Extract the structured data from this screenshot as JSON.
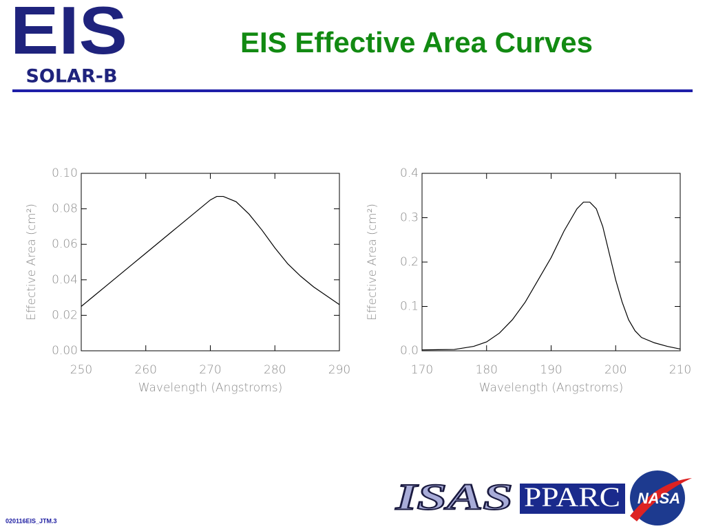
{
  "header": {
    "logo_main": "EIS",
    "logo_sub": "SOLAR-B",
    "title": "EIS Effective Area Curves"
  },
  "chart_data": [
    {
      "type": "line",
      "xlabel": "Wavelength (Angstroms)",
      "ylabel": "Effective Area (cm²)",
      "x": [
        250,
        252,
        254,
        256,
        258,
        260,
        262,
        264,
        266,
        268,
        270,
        271,
        272,
        274,
        276,
        278,
        280,
        282,
        284,
        286,
        288,
        290
      ],
      "series": [
        {
          "color": "#000000",
          "values": [
            0.025,
            0.031,
            0.037,
            0.043,
            0.049,
            0.055,
            0.061,
            0.067,
            0.073,
            0.079,
            0.085,
            0.087,
            0.087,
            0.084,
            0.077,
            0.068,
            0.058,
            0.049,
            0.042,
            0.036,
            0.031,
            0.026
          ]
        }
      ],
      "xlim": [
        250,
        290
      ],
      "xticks": [
        250,
        260,
        270,
        280,
        290
      ],
      "ylim": [
        0,
        0.1
      ],
      "yticks": [
        {
          "value": 0,
          "label": "0.00"
        },
        {
          "value": 0.02,
          "label": "0.02"
        },
        {
          "value": 0.04,
          "label": "0.04"
        },
        {
          "value": 0.06,
          "label": "0.06"
        },
        {
          "value": 0.08,
          "label": "0.08"
        },
        {
          "value": 0.1,
          "label": "0.10"
        }
      ]
    },
    {
      "type": "line",
      "xlabel": "Wavelength (Angstroms)",
      "ylabel": "Effective Area (cm²)",
      "x": [
        170,
        175,
        178,
        180,
        182,
        184,
        186,
        188,
        190,
        192,
        194,
        195,
        196,
        197,
        198,
        199,
        200,
        201,
        202,
        203,
        204,
        206,
        208,
        210
      ],
      "series": [
        {
          "color": "#000000",
          "values": [
            0.002,
            0.003,
            0.01,
            0.02,
            0.04,
            0.07,
            0.11,
            0.16,
            0.21,
            0.27,
            0.32,
            0.335,
            0.335,
            0.32,
            0.28,
            0.22,
            0.16,
            0.11,
            0.07,
            0.045,
            0.03,
            0.018,
            0.01,
            0.004
          ]
        }
      ],
      "xlim": [
        170,
        210
      ],
      "xticks": [
        170,
        180,
        190,
        200,
        210
      ],
      "ylim": [
        0,
        0.4
      ],
      "yticks": [
        {
          "value": 0,
          "label": "0.0"
        },
        {
          "value": 0.1,
          "label": "0.1"
        },
        {
          "value": 0.2,
          "label": "0.2"
        },
        {
          "value": 0.3,
          "label": "0.3"
        },
        {
          "value": 0.4,
          "label": "0.4"
        }
      ]
    }
  ],
  "footer": {
    "code": "020116EIS_JTM.3",
    "logos": [
      "ISAS",
      "PPARC",
      "NASA"
    ]
  }
}
